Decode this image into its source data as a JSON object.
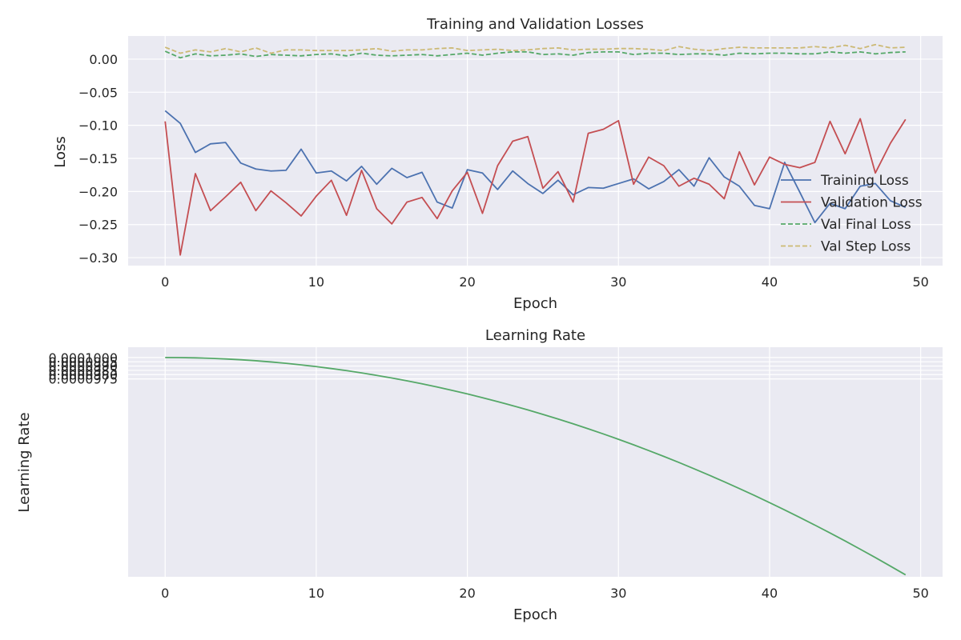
{
  "chart_data": [
    {
      "type": "line",
      "title": "Training and Validation Losses",
      "xlabel": "Epoch",
      "ylabel": "Loss",
      "xlim": [
        -2.45,
        51.45
      ],
      "ylim": [
        -0.312,
        0.035
      ],
      "xticks": [
        0,
        10,
        20,
        30,
        40,
        50
      ],
      "xtick_labels": [
        "0",
        "10",
        "20",
        "30",
        "40",
        "50"
      ],
      "yticks": [
        0.0,
        -0.05,
        -0.1,
        -0.15,
        -0.2,
        -0.25,
        -0.3
      ],
      "ytick_labels": [
        "0.00",
        "−0.05",
        "−0.10",
        "−0.15",
        "−0.20",
        "−0.25",
        "−0.30"
      ],
      "grid": true,
      "legend": "right",
      "x": [
        0,
        1,
        2,
        3,
        4,
        5,
        6,
        7,
        8,
        9,
        10,
        11,
        12,
        13,
        14,
        15,
        16,
        17,
        18,
        19,
        20,
        21,
        22,
        23,
        24,
        25,
        26,
        27,
        28,
        29,
        30,
        31,
        32,
        33,
        34,
        35,
        36,
        37,
        38,
        39,
        40,
        41,
        42,
        43,
        44,
        45,
        46,
        47,
        48,
        49
      ],
      "series": [
        {
          "name": "Training Loss",
          "color": "#4c72b0",
          "dash": "solid",
          "values": [
            -0.078,
            -0.097,
            -0.141,
            -0.128,
            -0.126,
            -0.157,
            -0.166,
            -0.169,
            -0.168,
            -0.136,
            -0.172,
            -0.169,
            -0.184,
            -0.162,
            -0.189,
            -0.165,
            -0.179,
            -0.171,
            -0.216,
            -0.225,
            -0.167,
            -0.172,
            -0.197,
            -0.169,
            -0.188,
            -0.203,
            -0.183,
            -0.205,
            -0.194,
            -0.195,
            -0.188,
            -0.181,
            -0.196,
            -0.185,
            -0.167,
            -0.192,
            -0.149,
            -0.178,
            -0.192,
            -0.221,
            -0.226,
            -0.156,
            -0.201,
            -0.247,
            -0.218,
            -0.226,
            -0.192,
            -0.188,
            -0.214,
            -0.224
          ]
        },
        {
          "name": "Validation Loss",
          "color": "#c44e52",
          "dash": "solid",
          "values": [
            -0.094,
            -0.296,
            -0.173,
            -0.229,
            -0.208,
            -0.186,
            -0.229,
            -0.199,
            -0.217,
            -0.237,
            -0.207,
            -0.183,
            -0.236,
            -0.168,
            -0.226,
            -0.249,
            -0.216,
            -0.209,
            -0.241,
            -0.199,
            -0.171,
            -0.233,
            -0.161,
            -0.124,
            -0.117,
            -0.195,
            -0.17,
            -0.216,
            -0.112,
            -0.106,
            -0.093,
            -0.189,
            -0.148,
            -0.161,
            -0.192,
            -0.18,
            -0.189,
            -0.211,
            -0.14,
            -0.19,
            -0.148,
            -0.159,
            -0.164,
            -0.156,
            -0.094,
            -0.143,
            -0.09,
            -0.172,
            -0.127,
            -0.091
          ]
        },
        {
          "name": "Val Final Loss",
          "color": "#55a868",
          "dash": "dashed",
          "values": [
            0.012,
            0.002,
            0.008,
            0.005,
            0.006,
            0.008,
            0.004,
            0.007,
            0.006,
            0.005,
            0.007,
            0.008,
            0.005,
            0.009,
            0.006,
            0.005,
            0.006,
            0.007,
            0.005,
            0.007,
            0.009,
            0.006,
            0.009,
            0.011,
            0.011,
            0.007,
            0.008,
            0.006,
            0.01,
            0.011,
            0.011,
            0.007,
            0.009,
            0.009,
            0.007,
            0.008,
            0.008,
            0.006,
            0.009,
            0.008,
            0.009,
            0.009,
            0.008,
            0.008,
            0.011,
            0.009,
            0.011,
            0.008,
            0.01,
            0.011
          ]
        },
        {
          "name": "Val Step Loss",
          "color": "#ccb974",
          "dash": "dashed",
          "values": [
            0.018,
            0.009,
            0.014,
            0.011,
            0.016,
            0.011,
            0.017,
            0.009,
            0.014,
            0.014,
            0.013,
            0.013,
            0.013,
            0.014,
            0.016,
            0.012,
            0.014,
            0.014,
            0.016,
            0.017,
            0.013,
            0.014,
            0.015,
            0.013,
            0.014,
            0.016,
            0.017,
            0.014,
            0.015,
            0.015,
            0.016,
            0.016,
            0.015,
            0.013,
            0.019,
            0.015,
            0.013,
            0.016,
            0.018,
            0.017,
            0.017,
            0.017,
            0.017,
            0.019,
            0.017,
            0.021,
            0.016,
            0.022,
            0.017,
            0.018
          ]
        }
      ]
    },
    {
      "type": "line",
      "title": "Learning Rate",
      "xlabel": "Epoch",
      "ylabel": "Learning Rate",
      "xlim": [
        -2.45,
        51.45
      ],
      "ylim": [
        9.744e-05,
        0.00010012
      ],
      "xticks": [
        0,
        10,
        20,
        30,
        40,
        50
      ],
      "xtick_labels": [
        "0",
        "10",
        "20",
        "30",
        "40",
        "50"
      ],
      "yticks": [
        0.0001,
        9.995e-05,
        9.99e-05,
        9.985e-05,
        9.98e-05,
        9.975e-05
      ],
      "ytick_labels": [
        "0.0001000",
        "0.0000995",
        "0.0000990",
        "0.0000985",
        "0.0000980",
        "0.0000975"
      ],
      "grid": true,
      "x": [
        0,
        1,
        2,
        3,
        4,
        5,
        6,
        7,
        8,
        9,
        10,
        11,
        12,
        13,
        14,
        15,
        16,
        17,
        18,
        19,
        20,
        21,
        22,
        23,
        24,
        25,
        26,
        27,
        28,
        29,
        30,
        31,
        32,
        33,
        34,
        35,
        36,
        37,
        38,
        39,
        40,
        41,
        42,
        43,
        44,
        45,
        46,
        47,
        48,
        49
      ],
      "series": [
        {
          "color": "#55a868",
          "dash": "solid",
          "values": [
            0.0001,
            9.99989e-05,
            9.99957e-05,
            9.99904e-05,
            9.99829e-05,
            9.99733e-05,
            9.99616e-05,
            9.99477e-05,
            9.99317e-05,
            9.99136e-05,
            9.98934e-05,
            9.9871e-05,
            9.98465e-05,
            9.98199e-05,
            9.97912e-05,
            9.97604e-05,
            9.97274e-05,
            9.96924e-05,
            9.96552e-05,
            9.96159e-05,
            9.95745e-05,
            9.9531e-05,
            9.94854e-05,
            9.94377e-05,
            9.93879e-05,
            9.9336e-05,
            9.9282e-05,
            9.92259e-05,
            9.91677e-05,
            9.91074e-05,
            9.9045e-05,
            9.89805e-05,
            9.89139e-05,
            9.88452e-05,
            9.87745e-05,
            9.87016e-05,
            9.86266e-05,
            9.85496e-05,
            9.84704e-05,
            9.83892e-05,
            9.83059e-05,
            9.82205e-05,
            9.8133e-05,
            9.80434e-05,
            9.79518e-05,
            9.78581e-05,
            9.77623e-05,
            9.76644e-05,
            9.75645e-05,
            9.74625e-05
          ]
        }
      ]
    }
  ]
}
